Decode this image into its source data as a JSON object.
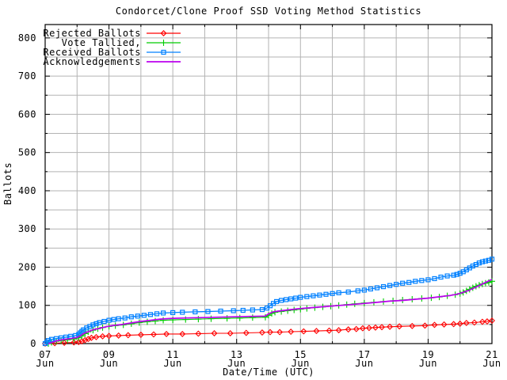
{
  "title": "Condorcet/Clone Proof SSD Voting Method Statistics",
  "x_axis": {
    "label": "Date/Time (UTC)",
    "month_label": "Jun",
    "labeled_days": [
      7,
      9,
      11,
      13,
      15,
      17,
      19,
      21
    ],
    "day_labels": [
      "07",
      "09",
      "11",
      "13",
      "15",
      "17",
      "19",
      "21"
    ],
    "gridline_every_days": 1
  },
  "y_axis": {
    "label": "Ballots",
    "tick_values": [
      0,
      100,
      200,
      300,
      400,
      500,
      600,
      700,
      800
    ],
    "minor_every": 50
  },
  "legend": {
    "position": "top-left-inside",
    "items": [
      {
        "label": "Rejected Ballots",
        "color": "#ff0000",
        "marker": "diamond"
      },
      {
        "label": "Vote Tallied,",
        "color": "#00cc00",
        "marker": "plus"
      },
      {
        "label": "Received Ballots",
        "color": "#0080ff",
        "marker": "square"
      },
      {
        "label": "Acknowledgements",
        "color": "#bb00ee",
        "marker": "none"
      }
    ]
  },
  "chart_data": {
    "type": "line",
    "title": "Condorcet/Clone Proof SSD Voting Method Statistics",
    "xlabel": "Date/Time (UTC)",
    "ylabel": "Ballots",
    "x_unit": "day of June (UTC)",
    "xlim": [
      7,
      21
    ],
    "ylim": [
      0,
      835
    ],
    "grid": true,
    "grid_color": "#b3b3b3",
    "border_color": "#000000",
    "background": "#ffffff",
    "legend_position": "top-left-inside",
    "series": [
      {
        "name": "Rejected Ballots",
        "color": "#ff0000",
        "marker": "diamond",
        "line_width": 1.1,
        "points": [
          [
            7.0,
            0
          ],
          [
            7.3,
            1
          ],
          [
            7.6,
            2
          ],
          [
            7.9,
            3
          ],
          [
            8.05,
            4
          ],
          [
            8.15,
            6
          ],
          [
            8.25,
            9
          ],
          [
            8.35,
            12
          ],
          [
            8.45,
            15
          ],
          [
            8.6,
            17
          ],
          [
            8.8,
            19
          ],
          [
            9.0,
            20
          ],
          [
            9.3,
            21
          ],
          [
            9.6,
            22
          ],
          [
            10.0,
            23
          ],
          [
            10.4,
            24
          ],
          [
            10.8,
            25
          ],
          [
            11.3,
            25
          ],
          [
            11.8,
            26
          ],
          [
            12.3,
            27
          ],
          [
            12.8,
            27
          ],
          [
            13.3,
            28
          ],
          [
            13.8,
            29
          ],
          [
            14.05,
            30
          ],
          [
            14.35,
            30
          ],
          [
            14.7,
            31
          ],
          [
            15.1,
            32
          ],
          [
            15.5,
            33
          ],
          [
            15.9,
            34
          ],
          [
            16.2,
            35
          ],
          [
            16.5,
            37
          ],
          [
            16.75,
            38
          ],
          [
            16.95,
            40
          ],
          [
            17.15,
            41
          ],
          [
            17.35,
            42
          ],
          [
            17.55,
            43
          ],
          [
            17.8,
            44
          ],
          [
            18.1,
            45
          ],
          [
            18.5,
            46
          ],
          [
            18.9,
            47
          ],
          [
            19.2,
            49
          ],
          [
            19.5,
            50
          ],
          [
            19.8,
            51
          ],
          [
            20.0,
            52
          ],
          [
            20.2,
            54
          ],
          [
            20.45,
            55
          ],
          [
            20.7,
            57
          ],
          [
            20.85,
            58
          ],
          [
            21.0,
            60
          ]
        ]
      },
      {
        "name": "Vote Tallied,",
        "color": "#00cc00",
        "marker": "plus",
        "line_width": 1.1,
        "points": [
          [
            7.1,
            0
          ],
          [
            7.2,
            3
          ],
          [
            7.35,
            6
          ],
          [
            7.5,
            8
          ],
          [
            7.7,
            10
          ],
          [
            7.9,
            12
          ],
          [
            8.05,
            15
          ],
          [
            8.15,
            20
          ],
          [
            8.25,
            26
          ],
          [
            8.35,
            31
          ],
          [
            8.5,
            35
          ],
          [
            8.65,
            39
          ],
          [
            8.8,
            42
          ],
          [
            9.0,
            45
          ],
          [
            9.2,
            47
          ],
          [
            9.45,
            49
          ],
          [
            9.7,
            52
          ],
          [
            9.95,
            55
          ],
          [
            10.2,
            57
          ],
          [
            10.45,
            59
          ],
          [
            10.7,
            61
          ],
          [
            11.0,
            62
          ],
          [
            11.4,
            63
          ],
          [
            11.8,
            64
          ],
          [
            12.2,
            65
          ],
          [
            12.7,
            66
          ],
          [
            13.1,
            67
          ],
          [
            13.5,
            68
          ],
          [
            13.9,
            69
          ],
          [
            14.0,
            74
          ],
          [
            14.1,
            79
          ],
          [
            14.2,
            82
          ],
          [
            14.4,
            84
          ],
          [
            14.6,
            86
          ],
          [
            14.8,
            88
          ],
          [
            15.0,
            90
          ],
          [
            15.2,
            92
          ],
          [
            15.45,
            94
          ],
          [
            15.7,
            96
          ],
          [
            15.95,
            98
          ],
          [
            16.2,
            100
          ],
          [
            16.45,
            102
          ],
          [
            16.7,
            104
          ],
          [
            17.0,
            106
          ],
          [
            17.3,
            108
          ],
          [
            17.6,
            110
          ],
          [
            17.9,
            112
          ],
          [
            18.2,
            114
          ],
          [
            18.5,
            116
          ],
          [
            18.8,
            118
          ],
          [
            19.1,
            120
          ],
          [
            19.35,
            122
          ],
          [
            19.6,
            125
          ],
          [
            19.85,
            128
          ],
          [
            20.0,
            131
          ],
          [
            20.1,
            134
          ],
          [
            20.2,
            138
          ],
          [
            20.3,
            142
          ],
          [
            20.4,
            146
          ],
          [
            20.5,
            150
          ],
          [
            20.6,
            153
          ],
          [
            20.7,
            156
          ],
          [
            20.8,
            158
          ],
          [
            20.9,
            160
          ],
          [
            21.0,
            163
          ]
        ]
      },
      {
        "name": "Received Ballots",
        "color": "#0080ff",
        "marker": "square",
        "line_width": 1.3,
        "points": [
          [
            7.0,
            0
          ],
          [
            7.05,
            4
          ],
          [
            7.1,
            8
          ],
          [
            7.2,
            11
          ],
          [
            7.35,
            13
          ],
          [
            7.5,
            15
          ],
          [
            7.65,
            17
          ],
          [
            7.8,
            19
          ],
          [
            7.95,
            21
          ],
          [
            8.05,
            24
          ],
          [
            8.1,
            28
          ],
          [
            8.15,
            32
          ],
          [
            8.2,
            36
          ],
          [
            8.3,
            41
          ],
          [
            8.4,
            45
          ],
          [
            8.5,
            49
          ],
          [
            8.6,
            52
          ],
          [
            8.7,
            55
          ],
          [
            8.85,
            58
          ],
          [
            9.0,
            61
          ],
          [
            9.15,
            63
          ],
          [
            9.3,
            65
          ],
          [
            9.5,
            67
          ],
          [
            9.7,
            70
          ],
          [
            9.9,
            72
          ],
          [
            10.1,
            74
          ],
          [
            10.3,
            76
          ],
          [
            10.5,
            78
          ],
          [
            10.7,
            80
          ],
          [
            11.0,
            81
          ],
          [
            11.3,
            82
          ],
          [
            11.7,
            83
          ],
          [
            12.1,
            84
          ],
          [
            12.5,
            85
          ],
          [
            12.9,
            86
          ],
          [
            13.2,
            87
          ],
          [
            13.5,
            88
          ],
          [
            13.8,
            89
          ],
          [
            13.95,
            93
          ],
          [
            14.05,
            99
          ],
          [
            14.15,
            105
          ],
          [
            14.25,
            110
          ],
          [
            14.4,
            113
          ],
          [
            14.55,
            115
          ],
          [
            14.7,
            117
          ],
          [
            14.85,
            119
          ],
          [
            15.0,
            121
          ],
          [
            15.2,
            123
          ],
          [
            15.4,
            125
          ],
          [
            15.6,
            127
          ],
          [
            15.8,
            129
          ],
          [
            16.0,
            131
          ],
          [
            16.2,
            133
          ],
          [
            16.5,
            135
          ],
          [
            16.8,
            138
          ],
          [
            17.0,
            140
          ],
          [
            17.2,
            143
          ],
          [
            17.4,
            146
          ],
          [
            17.6,
            149
          ],
          [
            17.8,
            152
          ],
          [
            18.0,
            155
          ],
          [
            18.2,
            158
          ],
          [
            18.4,
            160
          ],
          [
            18.6,
            163
          ],
          [
            18.8,
            165
          ],
          [
            19.0,
            167
          ],
          [
            19.2,
            170
          ],
          [
            19.4,
            174
          ],
          [
            19.6,
            177
          ],
          [
            19.8,
            179
          ],
          [
            19.9,
            181
          ],
          [
            20.0,
            184
          ],
          [
            20.1,
            188
          ],
          [
            20.2,
            193
          ],
          [
            20.3,
            198
          ],
          [
            20.4,
            203
          ],
          [
            20.5,
            207
          ],
          [
            20.6,
            211
          ],
          [
            20.7,
            214
          ],
          [
            20.8,
            216
          ],
          [
            20.9,
            218
          ],
          [
            21.0,
            221
          ]
        ]
      },
      {
        "name": "Acknowledgements",
        "color": "#bb00ee",
        "marker": "none",
        "line_width": 1.7,
        "points": [
          [
            7.1,
            0
          ],
          [
            7.25,
            4
          ],
          [
            7.4,
            8
          ],
          [
            7.6,
            11
          ],
          [
            7.8,
            13
          ],
          [
            8.0,
            16
          ],
          [
            8.1,
            20
          ],
          [
            8.2,
            26
          ],
          [
            8.35,
            31
          ],
          [
            8.5,
            36
          ],
          [
            8.7,
            40
          ],
          [
            8.9,
            44
          ],
          [
            9.1,
            47
          ],
          [
            9.4,
            50
          ],
          [
            9.7,
            54
          ],
          [
            10.0,
            58
          ],
          [
            10.3,
            61
          ],
          [
            10.6,
            64
          ],
          [
            11.0,
            66
          ],
          [
            11.4,
            67
          ],
          [
            11.9,
            68
          ],
          [
            12.4,
            69
          ],
          [
            12.9,
            70
          ],
          [
            13.4,
            71
          ],
          [
            13.9,
            72
          ],
          [
            14.0,
            78
          ],
          [
            14.15,
            83
          ],
          [
            14.3,
            85
          ],
          [
            14.6,
            88
          ],
          [
            14.9,
            91
          ],
          [
            15.2,
            93
          ],
          [
            15.5,
            95
          ],
          [
            15.8,
            97
          ],
          [
            16.1,
            99
          ],
          [
            16.4,
            101
          ],
          [
            16.7,
            103
          ],
          [
            17.0,
            105
          ],
          [
            17.4,
            108
          ],
          [
            17.8,
            111
          ],
          [
            18.2,
            113
          ],
          [
            18.6,
            116
          ],
          [
            19.0,
            119
          ],
          [
            19.4,
            123
          ],
          [
            19.7,
            126
          ],
          [
            19.9,
            129
          ],
          [
            20.1,
            134
          ],
          [
            20.3,
            140
          ],
          [
            20.5,
            148
          ],
          [
            20.7,
            156
          ],
          [
            20.85,
            162
          ],
          [
            21.0,
            168
          ]
        ]
      }
    ]
  }
}
